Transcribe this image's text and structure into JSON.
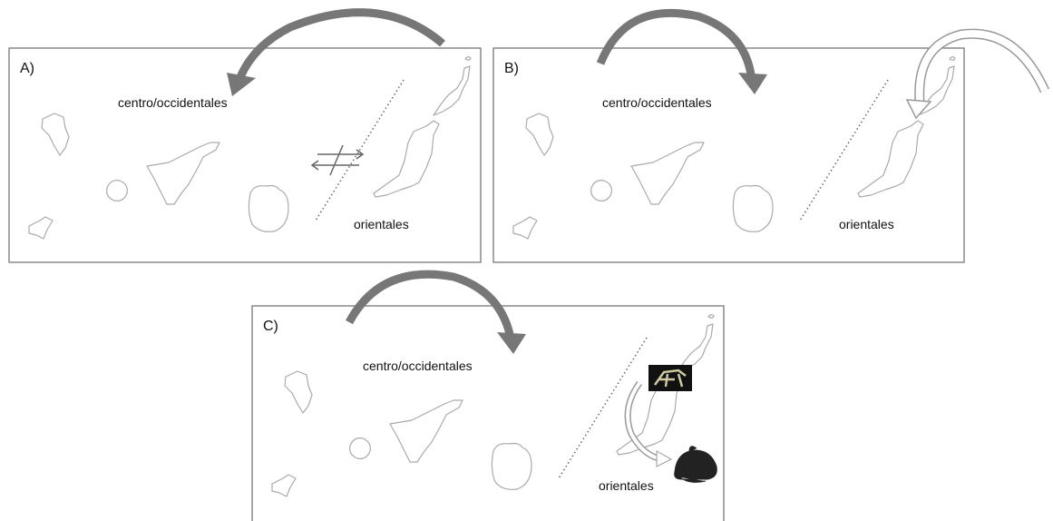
{
  "panels": [
    {
      "label": "A)",
      "west": "centro/occidentales",
      "east": "orientales"
    },
    {
      "label": "B)",
      "west": "centro/occidentales",
      "east": "orientales"
    },
    {
      "label": "C)",
      "west": "centro/occidentales",
      "east": "orientales"
    }
  ]
}
